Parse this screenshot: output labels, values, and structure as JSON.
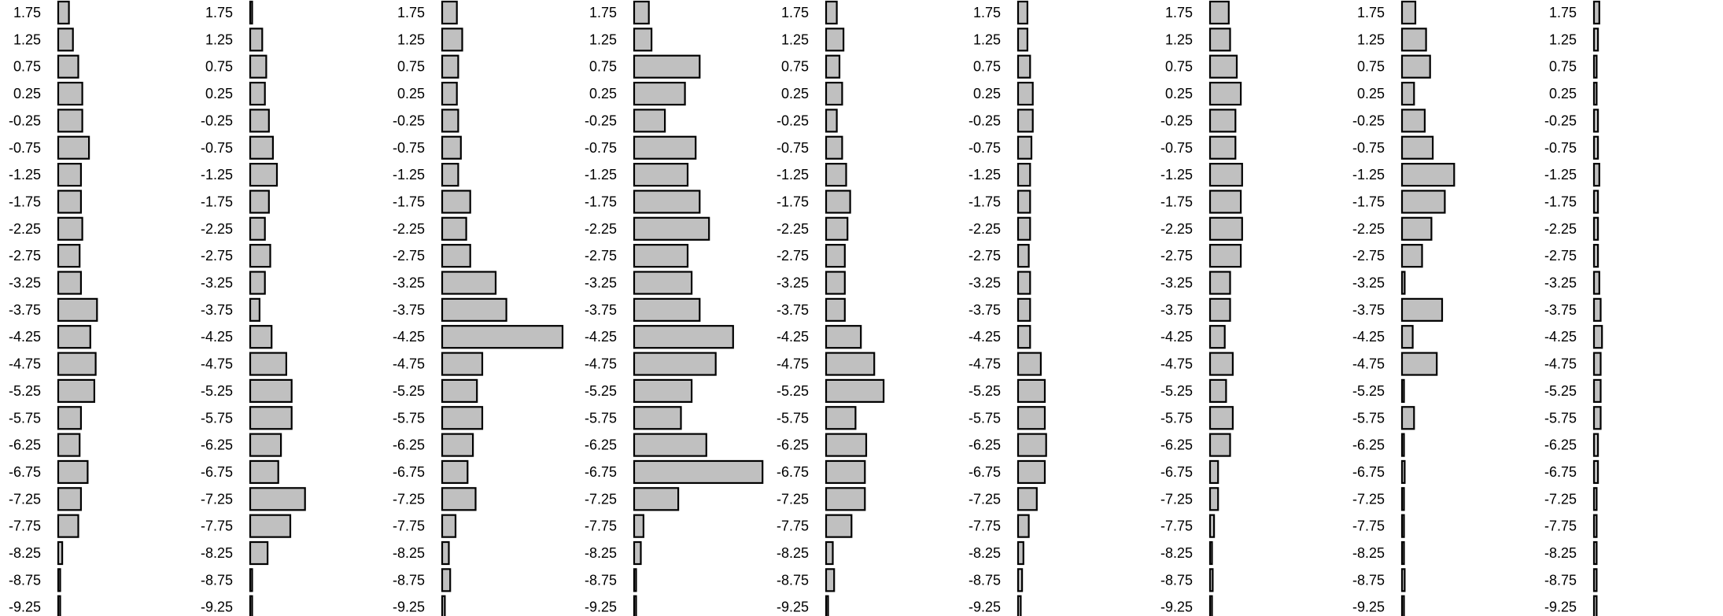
{
  "chart_data": {
    "type": "bar",
    "orientation": "horizontal",
    "panel_count": 9,
    "categories": [
      "1.75",
      "1.25",
      "0.75",
      "0.25",
      "-0.25",
      "-0.75",
      "-1.25",
      "-1.75",
      "-2.25",
      "-2.75",
      "-3.25",
      "-3.75",
      "-4.25",
      "-4.75",
      "-5.25",
      "-5.75",
      "-6.25",
      "-6.75",
      "-7.25",
      "-7.75",
      "-8.25",
      "-8.75",
      "-9.25"
    ],
    "series": [
      {
        "values": [
          0.08,
          0.11,
          0.15,
          0.18,
          0.18,
          0.23,
          0.17,
          0.17,
          0.18,
          0.16,
          0.17,
          0.29,
          0.24,
          0.28,
          0.27,
          0.17,
          0.16,
          0.22,
          0.17,
          0.15,
          0.03,
          0.005,
          0.005
        ]
      },
      {
        "values": [
          0.01,
          0.09,
          0.12,
          0.11,
          0.14,
          0.17,
          0.2,
          0.14,
          0.11,
          0.15,
          0.11,
          0.07,
          0.16,
          0.27,
          0.31,
          0.31,
          0.23,
          0.21,
          0.41,
          0.3,
          0.13,
          0.005,
          0.005
        ]
      },
      {
        "values": [
          0.11,
          0.15,
          0.12,
          0.11,
          0.12,
          0.14,
          0.12,
          0.21,
          0.18,
          0.21,
          0.4,
          0.48,
          0.9,
          0.3,
          0.26,
          0.3,
          0.23,
          0.19,
          0.25,
          0.1,
          0.05,
          0.06,
          0.02
        ]
      },
      {
        "values": [
          0.11,
          0.13,
          0.49,
          0.38,
          0.23,
          0.46,
          0.4,
          0.49,
          0.56,
          0.4,
          0.43,
          0.49,
          0.74,
          0.61,
          0.43,
          0.35,
          0.54,
          0.96,
          0.33,
          0.07,
          0.05,
          0.005,
          0.005
        ]
      },
      {
        "values": [
          0.08,
          0.13,
          0.1,
          0.12,
          0.08,
          0.12,
          0.15,
          0.18,
          0.16,
          0.14,
          0.14,
          0.14,
          0.26,
          0.36,
          0.43,
          0.22,
          0.3,
          0.29,
          0.29,
          0.19,
          0.05,
          0.06,
          0.01
        ]
      },
      {
        "values": [
          0.07,
          0.07,
          0.09,
          0.11,
          0.11,
          0.1,
          0.09,
          0.09,
          0.09,
          0.08,
          0.09,
          0.09,
          0.09,
          0.17,
          0.2,
          0.2,
          0.21,
          0.2,
          0.14,
          0.08,
          0.04,
          0.03,
          0.02
        ]
      },
      {
        "values": [
          0.14,
          0.15,
          0.2,
          0.23,
          0.19,
          0.19,
          0.24,
          0.23,
          0.24,
          0.23,
          0.15,
          0.15,
          0.11,
          0.17,
          0.12,
          0.17,
          0.15,
          0.06,
          0.06,
          0.03,
          0.005,
          0.02,
          0.005
        ]
      },
      {
        "values": [
          0.1,
          0.18,
          0.21,
          0.09,
          0.17,
          0.23,
          0.39,
          0.32,
          0.22,
          0.15,
          0.02,
          0.3,
          0.08,
          0.26,
          0.005,
          0.09,
          0.005,
          0.02,
          0.005,
          0.005,
          0.005,
          0.02,
          0.005
        ]
      },
      {
        "values": [
          0.04,
          0.03,
          0.02,
          0.02,
          0.03,
          0.03,
          0.04,
          0.03,
          0.03,
          0.03,
          0.04,
          0.05,
          0.06,
          0.05,
          0.05,
          0.05,
          0.03,
          0.03,
          0.02,
          0.02,
          0.02,
          0.02,
          0.02
        ]
      }
    ]
  }
}
